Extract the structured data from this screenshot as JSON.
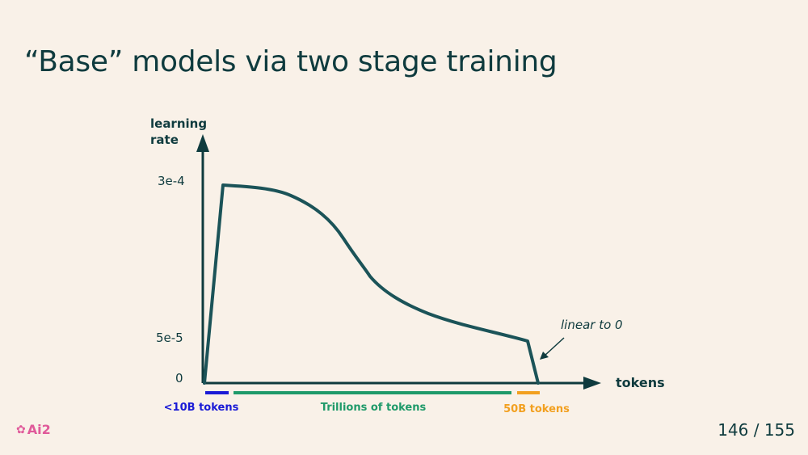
{
  "slide": {
    "title": "“Base” models via two stage training",
    "page": "146 / 155",
    "logo_text": "Ai2",
    "logo_mark": "✿"
  },
  "diagram": {
    "y_axis_label_line1": "learning",
    "y_axis_label_line2": "rate",
    "x_axis_label": "tokens",
    "y_ticks": [
      "3e-4",
      "5e-5",
      "0"
    ],
    "annotation": "linear to 0",
    "stages": [
      {
        "label": "<10B tokens",
        "color": "#1a1ad6"
      },
      {
        "label": "Trillions of tokens",
        "color": "#1f9a6a"
      },
      {
        "label": "50B tokens",
        "color": "#f2a020"
      }
    ],
    "curve_color": "#1b5358",
    "axis_color": "#0f3b3e"
  }
}
